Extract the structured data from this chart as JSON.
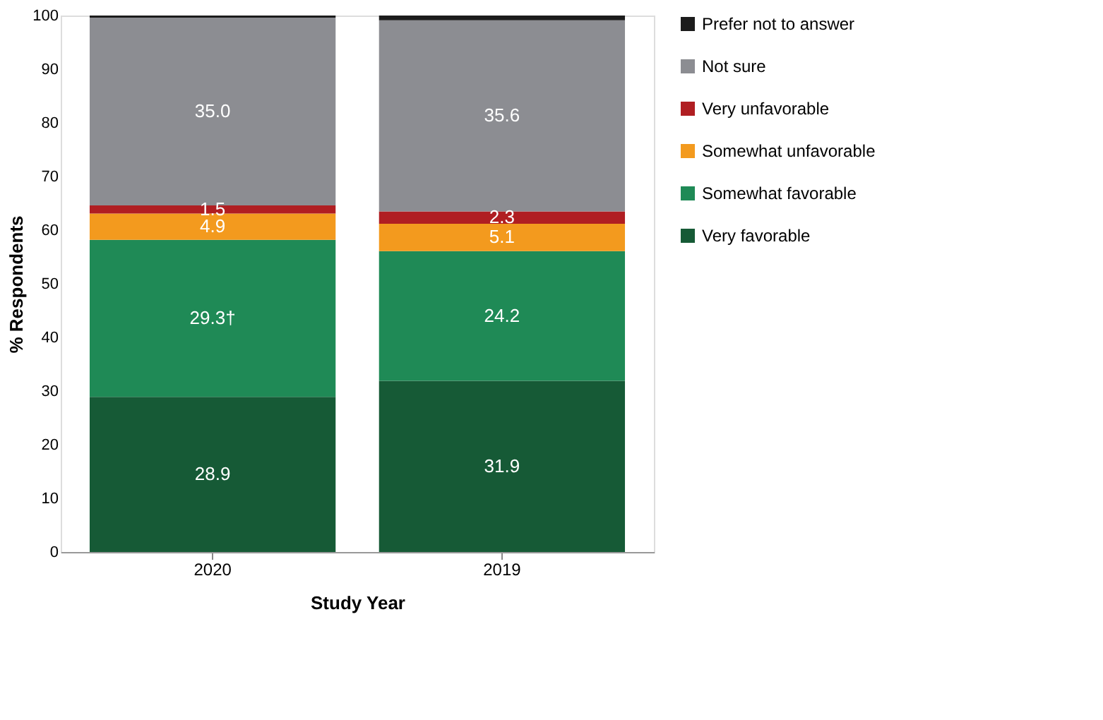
{
  "chart_data": {
    "type": "bar",
    "stacked": true,
    "xlabel": "Study Year",
    "ylabel": "% Respondents",
    "categories": [
      "2020",
      "2019"
    ],
    "ylim": [
      0,
      100
    ],
    "yticks": [
      0,
      10,
      20,
      30,
      40,
      50,
      60,
      70,
      80,
      90,
      100
    ],
    "grid": false,
    "legend": "right",
    "series": [
      {
        "name": "Very favorable",
        "color": "#165a36",
        "values": [
          28.9,
          31.9
        ],
        "value_labels": [
          "28.9",
          "31.9"
        ]
      },
      {
        "name": "Somewhat favorable",
        "color": "#1f8a56",
        "values": [
          29.3,
          24.2
        ],
        "value_labels": [
          "29.3†",
          "24.2"
        ]
      },
      {
        "name": "Somewhat unfavorable",
        "color": "#f39a1e",
        "values": [
          4.9,
          5.1
        ],
        "value_labels": [
          "4.9",
          "5.1"
        ]
      },
      {
        "name": "Very unfavorable",
        "color": "#b01e22",
        "values": [
          1.5,
          2.3
        ],
        "value_labels": [
          "1.5",
          "2.3"
        ]
      },
      {
        "name": "Not sure",
        "color": "#8c8d92",
        "values": [
          35.0,
          35.6
        ],
        "value_labels": [
          "35.0",
          "35.6"
        ]
      },
      {
        "name": "Prefer not to answer",
        "color": "#1c1c1c",
        "values": [
          0.4,
          0.9
        ],
        "value_labels": [
          null,
          null
        ]
      }
    ]
  }
}
